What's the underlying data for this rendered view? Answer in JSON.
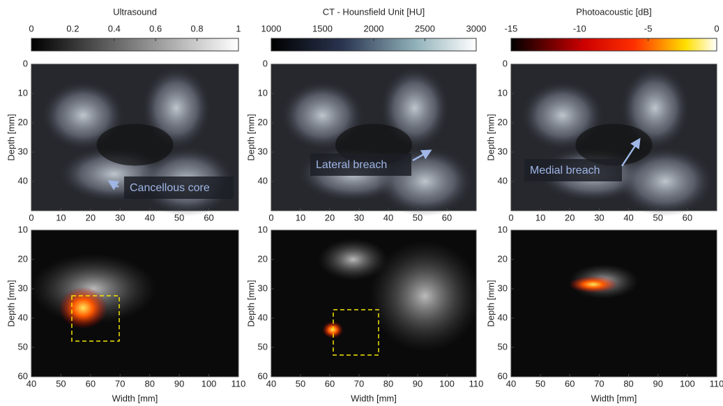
{
  "colorbars": [
    {
      "title": "Ultrasound",
      "lim": [
        0,
        1
      ],
      "ticks": [
        0,
        0.2,
        0.4,
        0.6,
        0.8,
        1
      ]
    },
    {
      "title": "CT - Hounsfield Unit [HU]",
      "lim": [
        1000,
        3000
      ],
      "ticks": [
        1000,
        1500,
        2000,
        2500,
        3000
      ]
    },
    {
      "title": "Photoacoustic [dB]",
      "lim": [
        -15,
        0
      ],
      "ticks": [
        -15,
        -10,
        -5,
        0
      ]
    }
  ],
  "top_row": {
    "ylabel": "Depth [mm]",
    "xlim": [
      0,
      70
    ],
    "xticks": [
      0,
      10,
      20,
      30,
      40,
      50,
      60
    ],
    "ylim": [
      0,
      50
    ],
    "yticks": [
      0,
      10,
      20,
      30,
      40
    ],
    "annotations": [
      "Cancellous core",
      "Lateral breach",
      "Medial breach"
    ]
  },
  "bottom_row": {
    "xlabel": "Width [mm]",
    "ylabel": "Depth [mm]",
    "xlim": [
      40,
      110
    ],
    "xticks": [
      40,
      50,
      60,
      70,
      80,
      90,
      100,
      110
    ],
    "ylim": [
      10,
      60
    ],
    "yticks": [
      10,
      20,
      30,
      40,
      50,
      60
    ]
  }
}
